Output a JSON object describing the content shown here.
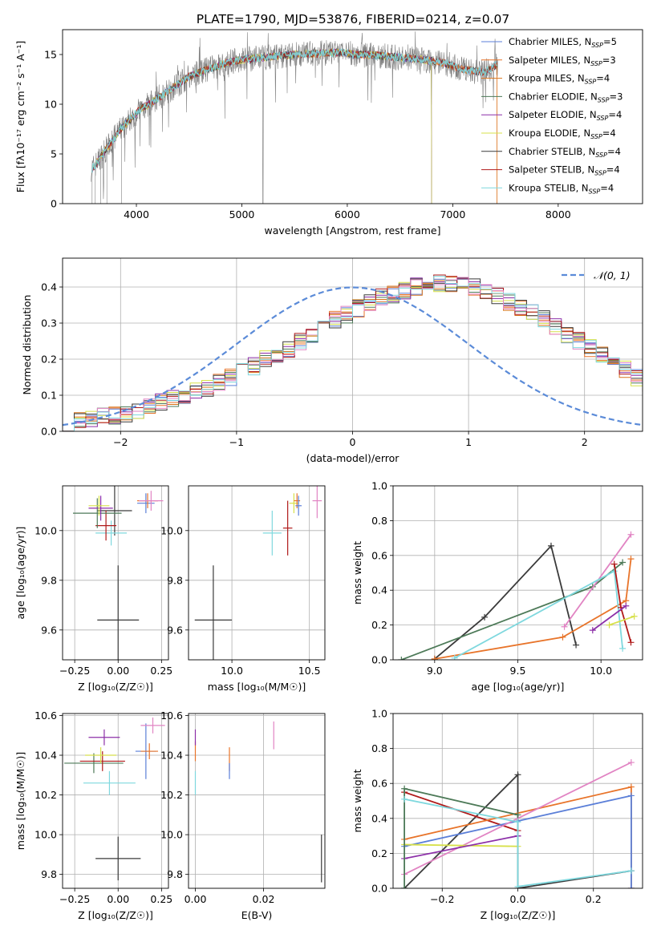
{
  "figure_title": "PLATE=1790, MJD=53876, FIBERID=0214, z=0.07",
  "colors": {
    "chabrier_miles": "#5b7fd8",
    "salpeter_miles": "#e8742a",
    "kroupa_miles": "#d8731a",
    "chabrier_elodie": "#4d7a58",
    "salpeter_elodie": "#8c2fa8",
    "kroupa_elodie": "#d7e04a",
    "chabrier_stelib": "#3a3a3a",
    "salpeter_stelib": "#b01a1a",
    "kroupa_stelib": "#7fd8de",
    "pink": "#e184c3",
    "data": "#808080",
    "normal": "#5b8bd8"
  },
  "chart_data": [
    {
      "type": "line",
      "id": "spectrum",
      "xlabel": "wavelength [Angstrom, rest frame]",
      "ylabel": "Flux [fλ10⁻¹⁷ erg cm⁻² s⁻¹ A⁻¹]",
      "xlim": [
        3300,
        8800
      ],
      "ylim": [
        0,
        17.5
      ],
      "xticks": [
        4000,
        5000,
        6000,
        7000,
        8000
      ],
      "yticks": [
        0,
        5,
        10,
        15
      ],
      "grid": false,
      "legend": "top-right",
      "legend_entries": [
        "Chabrier MILES, N_SSP=5",
        "Salpeter MILES, N_SSP=3",
        "Kroupa MILES, N_SSP=4",
        "Chabrier ELODIE, N_SSP=3",
        "Salpeter ELODIE, N_SSP=4",
        "Kroupa ELODIE, N_SSP=4",
        "Chabrier STELIB, N_SSP=4",
        "Salpeter STELIB, N_SSP=4",
        "Kroupa STELIB, N_SSP=4"
      ],
      "continuum": {
        "x": [
          3580,
          3650,
          3750,
          3850,
          3950,
          4050,
          4150,
          4300,
          4500,
          4700,
          4900,
          5100,
          5300,
          5500,
          5700,
          5900,
          6100,
          6300,
          6500,
          6700,
          6900,
          7100,
          7300,
          7420
        ],
        "y": [
          3.5,
          4.5,
          6.0,
          7.5,
          8.6,
          9.6,
          10.2,
          11.3,
          12.8,
          13.6,
          14.3,
          14.6,
          14.8,
          15.0,
          15.1,
          15.2,
          15.0,
          14.9,
          14.7,
          14.5,
          14.2,
          13.5,
          13.2,
          14.0
        ]
      },
      "data_cutoffs": {
        "elodie_end": 6800,
        "stelib_end": 7420,
        "data_end": 7430
      }
    },
    {
      "type": "bar",
      "id": "residual-histogram",
      "xlabel": "(data-model)/error",
      "ylabel": "Normed distribution",
      "xlim": [
        -2.5,
        2.5
      ],
      "ylim": [
        0,
        0.48
      ],
      "xticks": [
        -2,
        -1,
        0,
        1,
        2
      ],
      "yticks": [
        0.0,
        0.1,
        0.2,
        0.3,
        0.4
      ],
      "xticklabels": [
        "−2",
        "−1",
        "0",
        "1",
        "2"
      ],
      "yticklabels": [
        "0.0",
        "0.1",
        "0.2",
        "0.3",
        "0.4"
      ],
      "grid": true,
      "legend": "top-right",
      "legend_entries": [
        "𝒩(0, 1)"
      ],
      "bin_width": 0.1,
      "bin_start": -2.5,
      "values": [
        0.025,
        0.03,
        0.035,
        0.04,
        0.045,
        0.05,
        0.055,
        0.065,
        0.08,
        0.09,
        0.1,
        0.11,
        0.12,
        0.135,
        0.15,
        0.165,
        0.18,
        0.2,
        0.215,
        0.23,
        0.25,
        0.27,
        0.29,
        0.31,
        0.325,
        0.34,
        0.355,
        0.37,
        0.38,
        0.39,
        0.4,
        0.405,
        0.41,
        0.41,
        0.405,
        0.4,
        0.39,
        0.375,
        0.36,
        0.345,
        0.33,
        0.31,
        0.29,
        0.27,
        0.25,
        0.23,
        0.21,
        0.19,
        0.17,
        0.15,
        0.135,
        0.12,
        0.105,
        0.09,
        0.075,
        0.065,
        0.055,
        0.05,
        0.045,
        0.04,
        0.035,
        0.03,
        0.03,
        0.025,
        0.025,
        0.02,
        0.02,
        0.02,
        0.02,
        0.02
      ]
    },
    {
      "type": "scatter",
      "id": "age-vs-z",
      "xlabel": "Z [log₁₀(Z/Z☉)]",
      "ylabel": "age  [log₁₀(age/yr)]",
      "xlim": [
        -0.32,
        0.29
      ],
      "ylim": [
        9.48,
        10.18
      ],
      "xticks": [
        -0.25,
        0.0,
        0.25
      ],
      "xticklabels": [
        "−0.25",
        "0.00",
        "0.25"
      ],
      "yticks": [
        9.6,
        9.8,
        10.0
      ],
      "yticklabels": [
        "9.6",
        "9.8",
        "10.0"
      ],
      "grid": true,
      "points": [
        {
          "x": 0.0,
          "y": 9.64,
          "xerr": 0.12,
          "yerr": 0.22,
          "color": "chabrier_stelib"
        },
        {
          "x": -0.02,
          "y": 10.08,
          "xerr": 0.1,
          "yerr": 0.1,
          "color": "chabrier_stelib"
        },
        {
          "x": -0.04,
          "y": 9.99,
          "xerr": 0.09,
          "yerr": 0.05,
          "color": "kroupa_stelib"
        },
        {
          "x": -0.07,
          "y": 10.02,
          "xerr": 0.06,
          "yerr": 0.06,
          "color": "salpeter_stelib"
        },
        {
          "x": -0.12,
          "y": 10.07,
          "xerr": 0.14,
          "yerr": 0.06,
          "color": "chabrier_elodie"
        },
        {
          "x": -0.1,
          "y": 10.09,
          "xerr": 0.07,
          "yerr": 0.05,
          "color": "salpeter_elodie"
        },
        {
          "x": -0.11,
          "y": 10.1,
          "xerr": 0.06,
          "yerr": 0.04,
          "color": "kroupa_elodie"
        },
        {
          "x": 0.16,
          "y": 10.11,
          "xerr": 0.05,
          "yerr": 0.04,
          "color": "chabrier_miles"
        },
        {
          "x": 0.17,
          "y": 10.12,
          "xerr": 0.06,
          "yerr": 0.03,
          "color": "salpeter_miles"
        },
        {
          "x": 0.19,
          "y": 10.12,
          "xerr": 0.07,
          "yerr": 0.04,
          "color": "pink"
        }
      ]
    },
    {
      "type": "scatter",
      "id": "age-vs-mass",
      "xlabel": "mass [log₁₀(M/M☉)]",
      "ylabel": "",
      "xlim": [
        9.72,
        10.6
      ],
      "ylim": [
        9.48,
        10.18
      ],
      "xticks": [
        10.0,
        10.5
      ],
      "xticklabels": [
        "10.0",
        "10.5"
      ],
      "yticks": [
        9.6,
        9.8,
        10.0
      ],
      "yticklabels": [
        "9.6",
        "9.8",
        "10.0"
      ],
      "grid": true,
      "points": [
        {
          "x": 9.88,
          "y": 9.64,
          "xerr": 0.12,
          "yerr": 0.22,
          "color": "chabrier_stelib"
        },
        {
          "x": 10.26,
          "y": 9.99,
          "xerr": 0.06,
          "yerr": 0.09,
          "color": "kroupa_stelib"
        },
        {
          "x": 10.36,
          "y": 10.01,
          "xerr": 0.03,
          "yerr": 0.11,
          "color": "salpeter_stelib"
        },
        {
          "x": 10.4,
          "y": 10.11,
          "xerr": 0.03,
          "yerr": 0.04,
          "color": "kroupa_elodie"
        },
        {
          "x": 10.42,
          "y": 10.12,
          "xerr": 0.02,
          "yerr": 0.03,
          "color": "salpeter_miles"
        },
        {
          "x": 10.43,
          "y": 10.1,
          "xerr": 0.02,
          "yerr": 0.04,
          "color": "chabrier_miles"
        },
        {
          "x": 10.55,
          "y": 10.12,
          "xerr": 0.03,
          "yerr": 0.07,
          "color": "pink"
        }
      ]
    },
    {
      "type": "line",
      "id": "mass-weight-vs-age",
      "xlabel": "age  [log₁₀(age/yr)]",
      "ylabel": "mass weight",
      "xlim": [
        8.75,
        10.25
      ],
      "ylim": [
        0.0,
        1.0
      ],
      "xticks": [
        9.0,
        9.5,
        10.0
      ],
      "xticklabels": [
        "9.0",
        "9.5",
        "10.0"
      ],
      "yticks": [
        0.0,
        0.2,
        0.4,
        0.6,
        0.8,
        1.0
      ],
      "yticklabels": [
        "0.0",
        "0.2",
        "0.4",
        "0.6",
        "0.8",
        "1.0"
      ],
      "grid": true,
      "series": [
        {
          "color": "chabrier_stelib",
          "x": [
            9.0,
            9.3,
            9.7,
            9.85
          ],
          "y": [
            0.005,
            0.245,
            0.655,
            0.085
          ]
        },
        {
          "color": "chabrier_elodie",
          "x": [
            8.8,
            9.95,
            10.13
          ],
          "y": [
            0.0,
            0.42,
            0.56
          ]
        },
        {
          "color": "salpeter_miles",
          "x": [
            9.0,
            9.77,
            10.15,
            10.18
          ],
          "y": [
            0.005,
            0.13,
            0.34,
            0.58
          ]
        },
        {
          "color": "pink",
          "x": [
            9.78,
            10.18
          ],
          "y": [
            0.19,
            0.72
          ]
        },
        {
          "color": "kroupa_stelib",
          "x": [
            9.12,
            10.08,
            10.13
          ],
          "y": [
            0.01,
            0.51,
            0.065
          ]
        },
        {
          "color": "salpeter_stelib",
          "x": [
            10.08,
            10.12,
            10.18
          ],
          "y": [
            0.55,
            0.3,
            0.1
          ]
        },
        {
          "color": "salpeter_elodie",
          "x": [
            9.95,
            10.15
          ],
          "y": [
            0.17,
            0.31
          ]
        },
        {
          "color": "kroupa_elodie",
          "x": [
            10.05,
            10.2
          ],
          "y": [
            0.2,
            0.25
          ]
        }
      ]
    },
    {
      "type": "scatter",
      "id": "mass-vs-z",
      "xlabel": "Z [log₁₀(Z/Z☉)]",
      "ylabel": "mass [log₁₀(M/M☉)]",
      "xlim": [
        -0.32,
        0.29
      ],
      "ylim": [
        9.73,
        10.61
      ],
      "xticks": [
        -0.25,
        0.0,
        0.25
      ],
      "xticklabels": [
        "−0.25",
        "0.00",
        "0.25"
      ],
      "yticks": [
        9.8,
        10.0,
        10.2,
        10.4,
        10.6
      ],
      "yticklabels": [
        "9.8",
        "10.0",
        "10.2",
        "10.4",
        "10.6"
      ],
      "grid": true,
      "points": [
        {
          "x": 0.0,
          "y": 9.88,
          "xerr": 0.13,
          "yerr": 0.11,
          "color": "chabrier_stelib"
        },
        {
          "x": -0.05,
          "y": 10.26,
          "xerr": 0.15,
          "yerr": 0.06,
          "color": "kroupa_stelib"
        },
        {
          "x": -0.14,
          "y": 10.36,
          "xerr": 0.17,
          "yerr": 0.05,
          "color": "chabrier_elodie"
        },
        {
          "x": -0.09,
          "y": 10.37,
          "xerr": 0.13,
          "yerr": 0.05,
          "color": "salpeter_stelib"
        },
        {
          "x": -0.1,
          "y": 10.4,
          "xerr": 0.09,
          "yerr": 0.04,
          "color": "kroupa_elodie"
        },
        {
          "x": -0.08,
          "y": 10.49,
          "xerr": 0.09,
          "yerr": 0.04,
          "color": "salpeter_elodie"
        },
        {
          "x": 0.16,
          "y": 10.42,
          "xerr": 0.06,
          "yerr": 0.14,
          "color": "chabrier_miles"
        },
        {
          "x": 0.18,
          "y": 10.42,
          "xerr": 0.05,
          "yerr": 0.04,
          "color": "salpeter_miles"
        },
        {
          "x": 0.2,
          "y": 10.55,
          "xerr": 0.07,
          "yerr": 0.04,
          "color": "pink"
        }
      ]
    },
    {
      "type": "scatter",
      "id": "mass-vs-ebv",
      "xlabel": "E(B-V)",
      "ylabel": "",
      "xlim": [
        -0.002,
        0.038
      ],
      "ylim": [
        9.73,
        10.61
      ],
      "xticks": [
        0.0,
        0.02
      ],
      "xticklabels": [
        "0.00",
        "0.02"
      ],
      "yticks": [
        9.8,
        10.0,
        10.2,
        10.4,
        10.6
      ],
      "yticklabels": [
        "9.8",
        "10.0",
        "10.2",
        "10.4",
        "10.6"
      ],
      "grid": true,
      "points": [
        {
          "x": 0.0,
          "y": 10.26,
          "xerr": 0,
          "yerr": 0.06,
          "color": "kroupa_stelib"
        },
        {
          "x": 0.0,
          "y": 10.42,
          "xerr": 0,
          "yerr": 0.05,
          "color": "salpeter_miles"
        },
        {
          "x": 0.0,
          "y": 10.49,
          "xerr": 0,
          "yerr": 0.04,
          "color": "salpeter_elodie"
        },
        {
          "x": 0.01,
          "y": 10.38,
          "xerr": 0,
          "yerr": 0.06,
          "color": "salpeter_miles"
        },
        {
          "x": 0.01,
          "y": 10.32,
          "xerr": 0,
          "yerr": 0.04,
          "color": "chabrier_miles"
        },
        {
          "x": 0.023,
          "y": 10.5,
          "xerr": 0,
          "yerr": 0.07,
          "color": "pink"
        },
        {
          "x": 0.037,
          "y": 9.88,
          "xerr": 0,
          "yerr": 0.12,
          "color": "chabrier_stelib"
        }
      ]
    },
    {
      "type": "line",
      "id": "mass-weight-vs-z",
      "xlabel": "Z [log₁₀(Z/Z☉)]",
      "ylabel": "mass weight",
      "xlim": [
        -0.33,
        0.33
      ],
      "ylim": [
        0.0,
        1.0
      ],
      "xticks": [
        -0.2,
        0.0,
        0.2
      ],
      "xticklabels": [
        "−0.2",
        "0.0",
        "0.2"
      ],
      "yticks": [
        0.0,
        0.2,
        0.4,
        0.6,
        0.8,
        1.0
      ],
      "yticklabels": [
        "0.0",
        "0.2",
        "0.4",
        "0.6",
        "0.8",
        "1.0"
      ],
      "grid": true,
      "series": [
        {
          "color": "chabrier_stelib",
          "x": [
            -0.3,
            0.0,
            0.0,
            0.3
          ],
          "y": [
            0.0,
            0.65,
            0.0,
            0.1
          ]
        },
        {
          "color": "salpeter_stelib",
          "x": [
            -0.3,
            0.0,
            0.0
          ],
          "y": [
            0.55,
            0.33,
            0.3
          ]
        },
        {
          "color": "salpeter_miles",
          "x": [
            -0.3,
            0.3,
            0.3
          ],
          "y": [
            0.28,
            0.58,
            0.0
          ]
        },
        {
          "color": "chabrier_miles",
          "x": [
            -0.3,
            0.3,
            0.3
          ],
          "y": [
            0.24,
            0.53,
            0.0
          ]
        },
        {
          "color": "pink",
          "x": [
            -0.3,
            0.3
          ],
          "y": [
            0.08,
            0.72
          ]
        },
        {
          "color": "kroupa_elodie",
          "x": [
            -0.3,
            0.0
          ],
          "y": [
            0.25,
            0.24
          ]
        },
        {
          "color": "salpeter_elodie",
          "x": [
            -0.3,
            0.0
          ],
          "y": [
            0.17,
            0.3
          ]
        },
        {
          "color": "chabrier_elodie",
          "x": [
            -0.3,
            -0.3,
            0.0
          ],
          "y": [
            0.0,
            0.57,
            0.42
          ]
        },
        {
          "color": "kroupa_stelib",
          "x": [
            -0.3,
            0.0,
            0.0,
            0.3
          ],
          "y": [
            0.51,
            0.38,
            0.01,
            0.1
          ]
        }
      ]
    }
  ]
}
